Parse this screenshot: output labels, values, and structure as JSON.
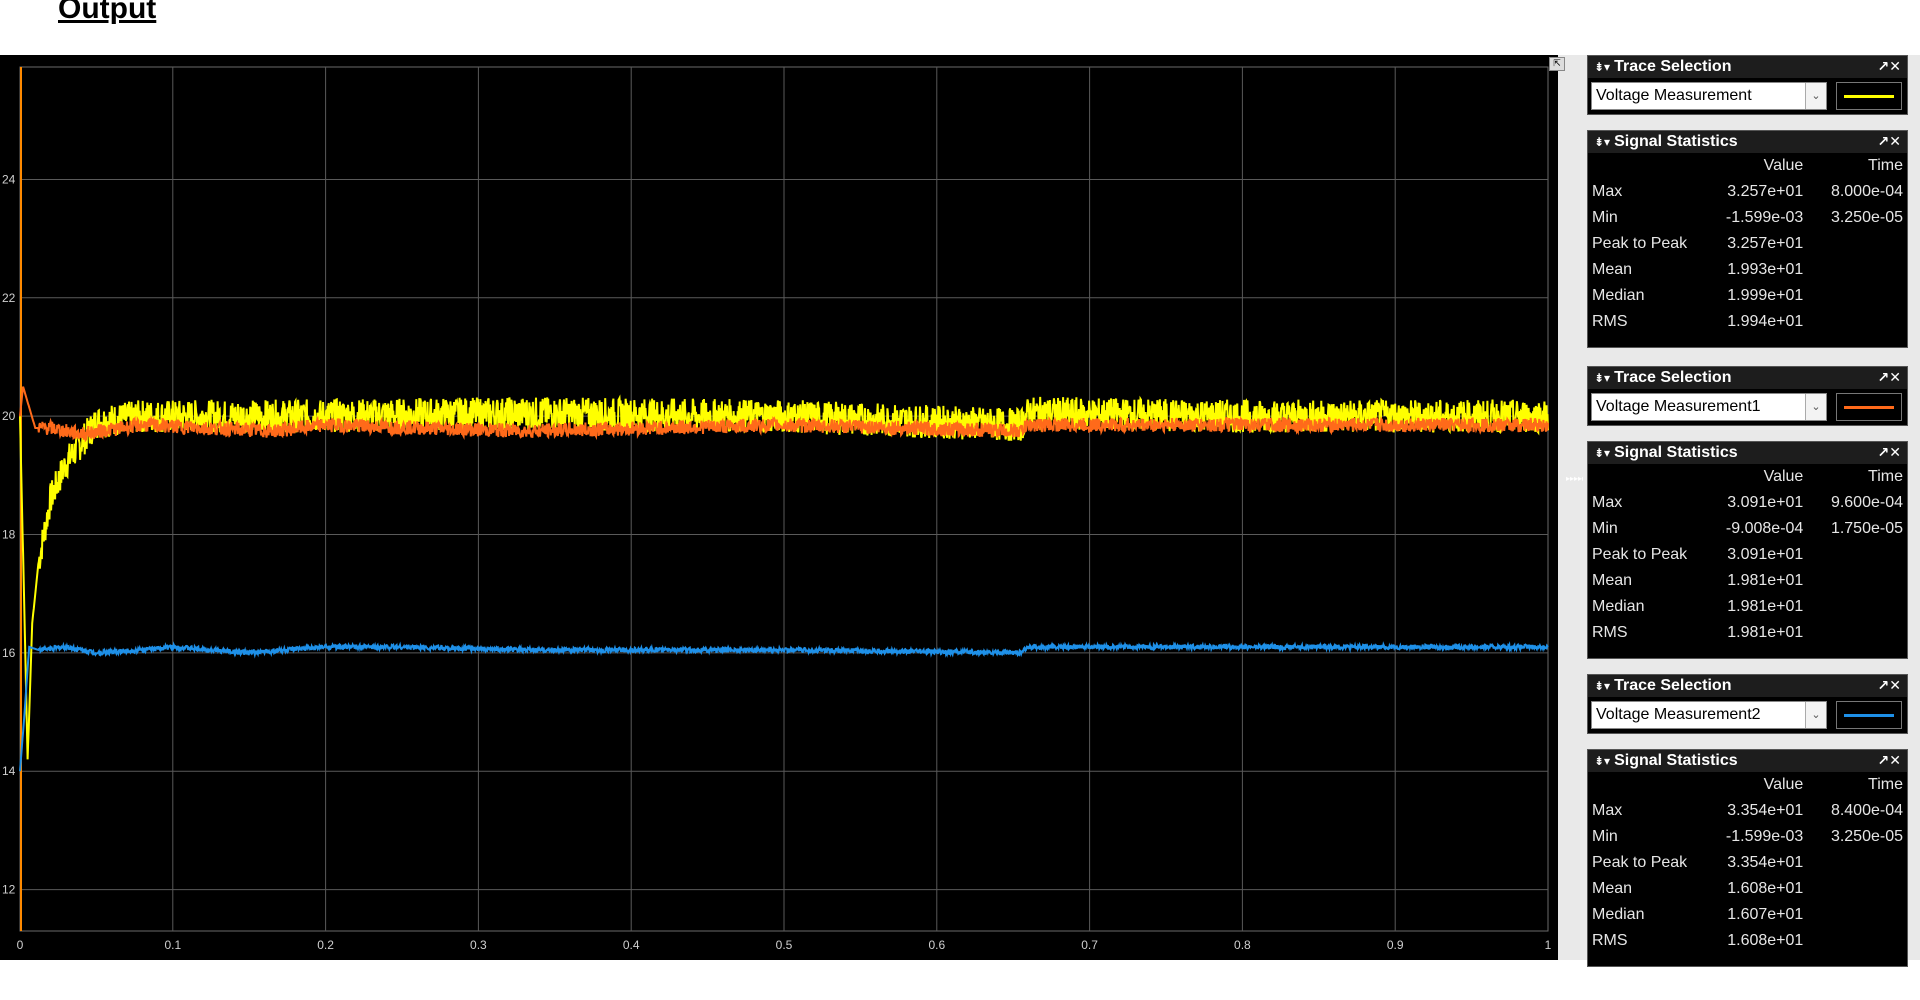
{
  "page": {
    "title": "Output"
  },
  "scope": {
    "trace_selection_title": "Trace Selection",
    "signal_statistics_title": "Signal Statistics",
    "stats_header": {
      "value": "Value",
      "time": "Time"
    },
    "side_arrows": "▸▸▸▸▸",
    "traces": [
      {
        "selection": "Voltage Measurement",
        "color": "#ffff00",
        "stats": [
          {
            "label": "Max",
            "value": "3.257e+01",
            "time": "8.000e-04"
          },
          {
            "label": "Min",
            "value": "-1.599e-03",
            "time": "3.250e-05"
          },
          {
            "label": "Peak to Peak",
            "value": "3.257e+01",
            "time": ""
          },
          {
            "label": "Mean",
            "value": "1.993e+01",
            "time": ""
          },
          {
            "label": "Median",
            "value": "1.999e+01",
            "time": ""
          },
          {
            "label": "RMS",
            "value": "1.994e+01",
            "time": ""
          }
        ]
      },
      {
        "selection": "Voltage Measurement1",
        "color": "#ff6a1a",
        "stats": [
          {
            "label": "Max",
            "value": "3.091e+01",
            "time": "9.600e-04"
          },
          {
            "label": "Min",
            "value": "-9.008e-04",
            "time": "1.750e-05"
          },
          {
            "label": "Peak to Peak",
            "value": "3.091e+01",
            "time": ""
          },
          {
            "label": "Mean",
            "value": "1.981e+01",
            "time": ""
          },
          {
            "label": "Median",
            "value": "1.981e+01",
            "time": ""
          },
          {
            "label": "RMS",
            "value": "1.981e+01",
            "time": ""
          }
        ]
      },
      {
        "selection": "Voltage Measurement2",
        "color": "#1e90e8",
        "stats": [
          {
            "label": "Max",
            "value": "3.354e+01",
            "time": "8.400e-04"
          },
          {
            "label": "Min",
            "value": "-1.599e-03",
            "time": "3.250e-05"
          },
          {
            "label": "Peak to Peak",
            "value": "3.354e+01",
            "time": ""
          },
          {
            "label": "Mean",
            "value": "1.608e+01",
            "time": ""
          },
          {
            "label": "Median",
            "value": "1.607e+01",
            "time": ""
          },
          {
            "label": "RMS",
            "value": "1.608e+01",
            "time": ""
          }
        ]
      }
    ]
  },
  "chart_data": {
    "type": "line",
    "title": "",
    "xlabel": "",
    "ylabel": "",
    "xlim": [
      0,
      1
    ],
    "ylim": [
      11.3,
      25.9
    ],
    "grid": true,
    "xticks": [
      0,
      0.1,
      0.2,
      0.3,
      0.4,
      0.5,
      0.6,
      0.7,
      0.8,
      0.9,
      1
    ],
    "xtick_labels": [
      "0",
      "0.1",
      "0.2",
      "0.3",
      "0.4",
      "0.5",
      "0.6",
      "0.7",
      "0.8",
      "0.9",
      "1"
    ],
    "yticks": [
      12,
      14,
      16,
      18,
      20,
      22,
      24
    ],
    "ytick_labels": [
      "12",
      "14",
      "16",
      "18",
      "20",
      "22",
      "24"
    ],
    "series": [
      {
        "name": "Voltage Measurement",
        "color": "#ffff00",
        "x": [
          0,
          0.005,
          0.008,
          0.012,
          0.02,
          0.03,
          0.04,
          0.05,
          0.08,
          0.165,
          0.33,
          0.5,
          0.655,
          0.66,
          0.8,
          1.0
        ],
        "y": [
          20.0,
          14.2,
          16.5,
          17.5,
          18.6,
          19.2,
          19.55,
          19.9,
          20.0,
          20.0,
          20.05,
          20.0,
          19.85,
          20.05,
          20.0,
          20.0
        ],
        "ripple": 0.28
      },
      {
        "name": "Voltage Measurement1",
        "color": "#ff6a1a",
        "x": [
          0,
          0.002,
          0.01,
          0.02,
          0.04,
          0.08,
          0.165,
          0.2,
          0.33,
          0.5,
          0.655,
          0.66,
          0.8,
          1.0
        ],
        "y": [
          20.0,
          20.5,
          19.8,
          19.8,
          19.7,
          19.85,
          19.75,
          19.85,
          19.75,
          19.85,
          19.75,
          19.85,
          19.85,
          19.85
        ],
        "ripple": 0.12
      },
      {
        "name": "Voltage Measurement2",
        "color": "#1e90e8",
        "x": [
          0,
          0.003,
          0.006,
          0.012,
          0.03,
          0.05,
          0.08,
          0.1,
          0.15,
          0.2,
          0.25,
          0.33,
          0.5,
          0.655,
          0.66,
          0.8,
          1.0
        ],
        "y": [
          14.0,
          15.0,
          16.1,
          16.05,
          16.1,
          16.0,
          16.05,
          16.1,
          16.0,
          16.1,
          16.1,
          16.05,
          16.05,
          16.0,
          16.1,
          16.1,
          16.1
        ],
        "ripple": 0.04
      }
    ]
  }
}
